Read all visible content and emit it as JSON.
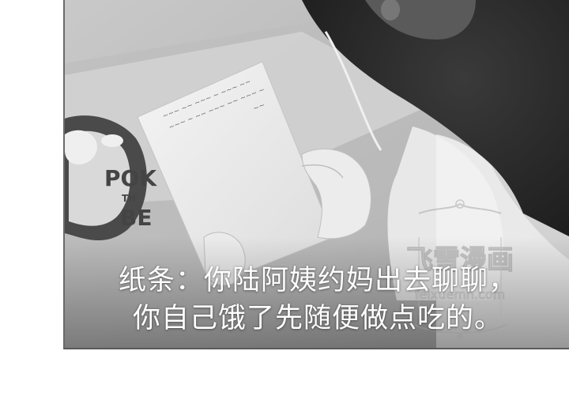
{
  "caption": {
    "line1": "纸条：你陆阿姨约妈出去聊聊，",
    "line2": "你自己饿了先随便做点吃的。"
  },
  "watermark": {
    "title": "飞雪漫画",
    "url": "feixuemh.com"
  },
  "background_sign": {
    "text1": "POK",
    "text2": "TH",
    "text3": "BE"
  },
  "colors": {
    "caption_text": "#ffffff",
    "page_background": "#ffffff",
    "frame_border": "#5a5a5a"
  }
}
